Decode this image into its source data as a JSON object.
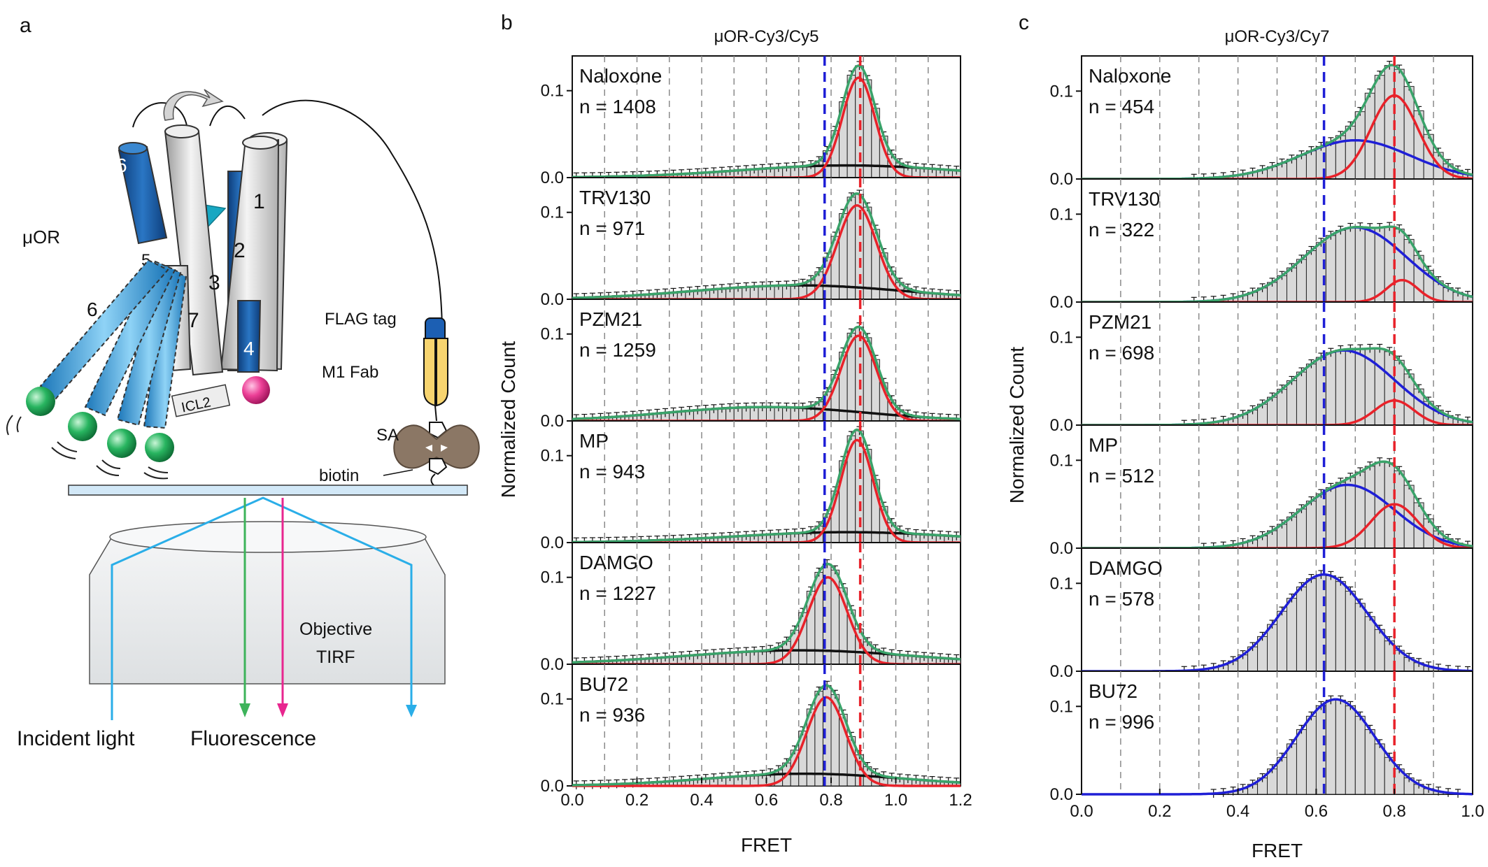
{
  "figure": {
    "panel_letters": {
      "a": "a",
      "b": "b",
      "c": "c"
    },
    "schematic": {
      "receptor_label": "μOR",
      "helix_labels": [
        "6",
        "1",
        "2",
        "3",
        "5",
        "7",
        "4",
        "6"
      ],
      "icl_label": "ICL2",
      "flag_label": "FLAG tag",
      "fab_label": "M1 Fab",
      "sa_label": "SA",
      "biotin_label": "biotin",
      "objective_label": "Objective",
      "tirf_label": "TIRF",
      "incident_label": "Incident light",
      "fluorescence_label": "Fluorescence"
    }
  },
  "chart_data": [
    {
      "id": "b",
      "type": "histogram",
      "title": "μOR-Cy3/Cy5",
      "xlabel": "FRET",
      "ylabel": "Normalized Count",
      "xlim": [
        0,
        1.2
      ],
      "ylim": [
        0,
        0.14
      ],
      "xticks": [
        "0.0",
        "0.2",
        "0.4",
        "0.6",
        "0.8",
        "1.0",
        "1.2"
      ],
      "yticks": [
        "0.0",
        "0.1"
      ],
      "grid_x": [
        0.1,
        0.2,
        0.3,
        0.4,
        0.5,
        0.6,
        0.7,
        0.8,
        0.9,
        1.0,
        1.1
      ],
      "ref_lines": [
        {
          "x": 0.78,
          "color": "#1f1fd6"
        },
        {
          "x": 0.89,
          "color": "#e8222a"
        }
      ],
      "bin_width": 0.025,
      "colors": {
        "bars": "#d9d9d9",
        "total": "#3aa36a",
        "gauss_a": "#e8222a",
        "gauss_b": "#111111"
      },
      "panels": [
        {
          "name": "Naloxone",
          "n": "n = 1408",
          "a": {
            "mu": 0.885,
            "sigma": 0.05,
            "amp": 0.115
          },
          "b": {
            "mu": 0.85,
            "sigma": 0.33,
            "amp": 0.014
          }
        },
        {
          "name": "TRV130",
          "n": "n = 971",
          "a": {
            "mu": 0.88,
            "sigma": 0.06,
            "amp": 0.108
          },
          "b": {
            "mu": 0.7,
            "sigma": 0.32,
            "amp": 0.016
          }
        },
        {
          "name": "PZM21",
          "n": "n = 1259",
          "a": {
            "mu": 0.885,
            "sigma": 0.055,
            "amp": 0.098
          },
          "b": {
            "mu": 0.6,
            "sigma": 0.3,
            "amp": 0.016
          }
        },
        {
          "name": "MP",
          "n": "n = 943",
          "a": {
            "mu": 0.88,
            "sigma": 0.05,
            "amp": 0.118
          },
          "b": {
            "mu": 0.85,
            "sigma": 0.34,
            "amp": 0.012
          }
        },
        {
          "name": "DAMGO",
          "n": "n = 1227",
          "a": {
            "mu": 0.79,
            "sigma": 0.06,
            "amp": 0.1
          },
          "b": {
            "mu": 0.7,
            "sigma": 0.35,
            "amp": 0.016
          }
        },
        {
          "name": "BU72",
          "n": "n = 936",
          "a": {
            "mu": 0.785,
            "sigma": 0.06,
            "amp": 0.102
          },
          "b": {
            "mu": 0.72,
            "sigma": 0.3,
            "amp": 0.014
          }
        }
      ]
    },
    {
      "id": "c",
      "type": "histogram",
      "title": "μOR-Cy3/Cy7",
      "xlabel": "FRET",
      "ylabel": "Normalized Count",
      "xlim": [
        0,
        1.0
      ],
      "ylim": [
        0,
        0.14
      ],
      "xticks": [
        "0.0",
        "0.2",
        "0.4",
        "0.6",
        "0.8",
        "1.0"
      ],
      "yticks": [
        "0.0",
        "0.1"
      ],
      "grid_x": [
        0.1,
        0.2,
        0.3,
        0.4,
        0.5,
        0.6,
        0.7,
        0.8,
        0.9
      ],
      "ref_lines": [
        {
          "x": 0.62,
          "color": "#1f1fd6"
        },
        {
          "x": 0.8,
          "color": "#e8222a"
        }
      ],
      "bin_width": 0.025,
      "colors": {
        "bars": "#d9d9d9",
        "total": "#3aa36a",
        "gauss_a": "#e8222a",
        "gauss_b": "#1f1fd6"
      },
      "panels": [
        {
          "name": "Naloxone",
          "n": "n = 454",
          "a": {
            "mu": 0.8,
            "sigma": 0.06,
            "amp": 0.095
          },
          "b": {
            "mu": 0.7,
            "sigma": 0.14,
            "amp": 0.044
          }
        },
        {
          "name": "TRV130",
          "n": "n = 322",
          "a": {
            "mu": 0.82,
            "sigma": 0.04,
            "amp": 0.025
          },
          "b": {
            "mu": 0.7,
            "sigma": 0.13,
            "amp": 0.085
          }
        },
        {
          "name": "PZM21",
          "n": "n = 698",
          "a": {
            "mu": 0.8,
            "sigma": 0.05,
            "amp": 0.028
          },
          "b": {
            "mu": 0.67,
            "sigma": 0.13,
            "amp": 0.085
          }
        },
        {
          "name": "MP",
          "n": "n = 512",
          "a": {
            "mu": 0.8,
            "sigma": 0.06,
            "amp": 0.05
          },
          "b": {
            "mu": 0.68,
            "sigma": 0.12,
            "amp": 0.072
          }
        },
        {
          "name": "DAMGO",
          "n": "n = 578",
          "a": null,
          "b": {
            "mu": 0.62,
            "sigma": 0.11,
            "amp": 0.11
          }
        },
        {
          "name": "BU72",
          "n": "n = 996",
          "a": null,
          "b": {
            "mu": 0.65,
            "sigma": 0.1,
            "amp": 0.108
          }
        }
      ]
    }
  ]
}
